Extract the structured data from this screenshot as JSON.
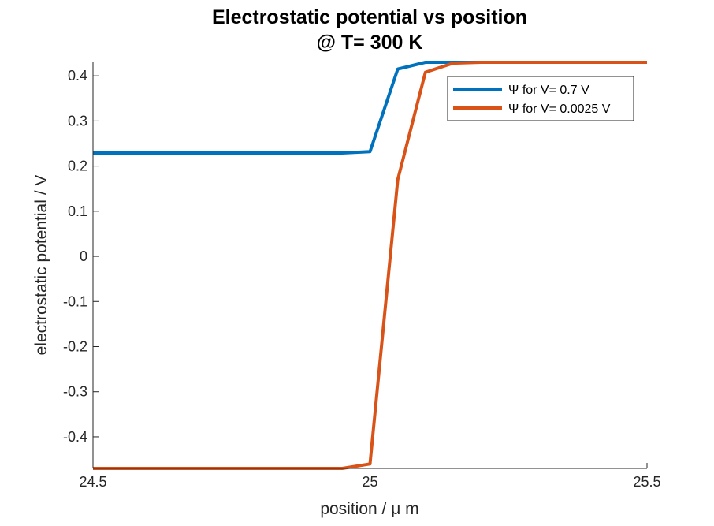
{
  "chart_data": {
    "type": "line",
    "title_line1": "Electrostatic potential vs position",
    "title_line2": "@ T= 300 K",
    "xlabel": "position / μ m",
    "ylabel": "electrostatic potential / V",
    "xlim": [
      24.5,
      25.5
    ],
    "ylim": [
      -0.47,
      0.43
    ],
    "xticks": [
      24.5,
      25,
      25.5
    ],
    "xtick_labels": [
      "24.5",
      "25",
      "25.5"
    ],
    "yticks": [
      -0.4,
      -0.3,
      -0.2,
      -0.1,
      0,
      0.1,
      0.2,
      0.3,
      0.4
    ],
    "ytick_labels": [
      "-0.4",
      "-0.3",
      "-0.2",
      "-0.1",
      "0",
      "0.1",
      "0.2",
      "0.3",
      "0.4"
    ],
    "grid": false,
    "legend_position": "top-right",
    "series": [
      {
        "name": "Ψ for V= 0.7 V",
        "color": "#0072BD",
        "x": [
          24.5,
          24.95,
          25.0,
          25.05,
          25.1,
          25.15,
          25.2,
          25.5
        ],
        "y": [
          0.229,
          0.229,
          0.232,
          0.415,
          0.43,
          0.43,
          0.43,
          0.43
        ]
      },
      {
        "name": "Ψ for V= 0.0025 V",
        "color": "#D95319",
        "x": [
          24.5,
          24.95,
          25.0,
          25.05,
          25.1,
          25.15,
          25.2,
          25.5
        ],
        "y": [
          -0.47,
          -0.47,
          -0.46,
          0.17,
          0.408,
          0.428,
          0.43,
          0.43
        ]
      }
    ]
  }
}
